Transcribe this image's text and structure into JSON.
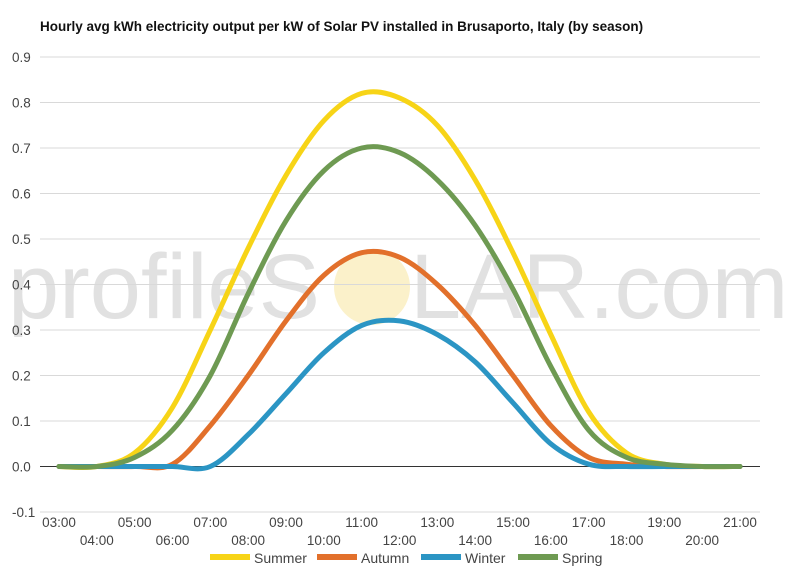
{
  "chart_data": {
    "type": "line",
    "title": "Hourly avg kWh electricity output per kW of Solar PV installed in Brusaporto, Italy (by season)",
    "xlabel": "",
    "ylabel": "",
    "x": [
      "03:00",
      "04:00",
      "05:00",
      "06:00",
      "07:00",
      "08:00",
      "09:00",
      "10:00",
      "11:00",
      "12:00",
      "13:00",
      "14:00",
      "15:00",
      "16:00",
      "17:00",
      "18:00",
      "19:00",
      "20:00",
      "21:00"
    ],
    "ylim": [
      -0.1,
      0.9
    ],
    "yticks": [
      "-0.1",
      "0.0",
      "0.1",
      "0.2",
      "0.3",
      "0.4",
      "0.5",
      "0.6",
      "0.7",
      "0.8",
      "0.9"
    ],
    "grid": true,
    "legend": "bottom",
    "series": [
      {
        "name": "Summer",
        "color": "#f7d417",
        "values": [
          0.0,
          0.0,
          0.03,
          0.13,
          0.3,
          0.48,
          0.64,
          0.76,
          0.82,
          0.81,
          0.75,
          0.63,
          0.47,
          0.29,
          0.12,
          0.03,
          0.005,
          0.0,
          0.0
        ]
      },
      {
        "name": "Autumn",
        "color": "#e2702b",
        "values": [
          0.0,
          0.0,
          0.0,
          0.005,
          0.09,
          0.2,
          0.32,
          0.42,
          0.47,
          0.46,
          0.4,
          0.31,
          0.2,
          0.09,
          0.02,
          0.005,
          0.0,
          0.0,
          0.0
        ]
      },
      {
        "name": "Winter",
        "color": "#2b95c4",
        "values": [
          0.0,
          0.0,
          0.0,
          0.0,
          0.0,
          0.07,
          0.16,
          0.25,
          0.31,
          0.32,
          0.29,
          0.23,
          0.14,
          0.05,
          0.005,
          0.0,
          0.0,
          0.0,
          0.0
        ]
      },
      {
        "name": "Spring",
        "color": "#6e9a52",
        "values": [
          0.0,
          0.0,
          0.02,
          0.08,
          0.2,
          0.38,
          0.54,
          0.65,
          0.7,
          0.69,
          0.63,
          0.53,
          0.39,
          0.22,
          0.08,
          0.02,
          0.005,
          0.0,
          0.0
        ]
      }
    ]
  },
  "watermark": {
    "text_left": "profileS",
    "text_right": "LAR.com",
    "sun_color": "#f7e08a"
  }
}
